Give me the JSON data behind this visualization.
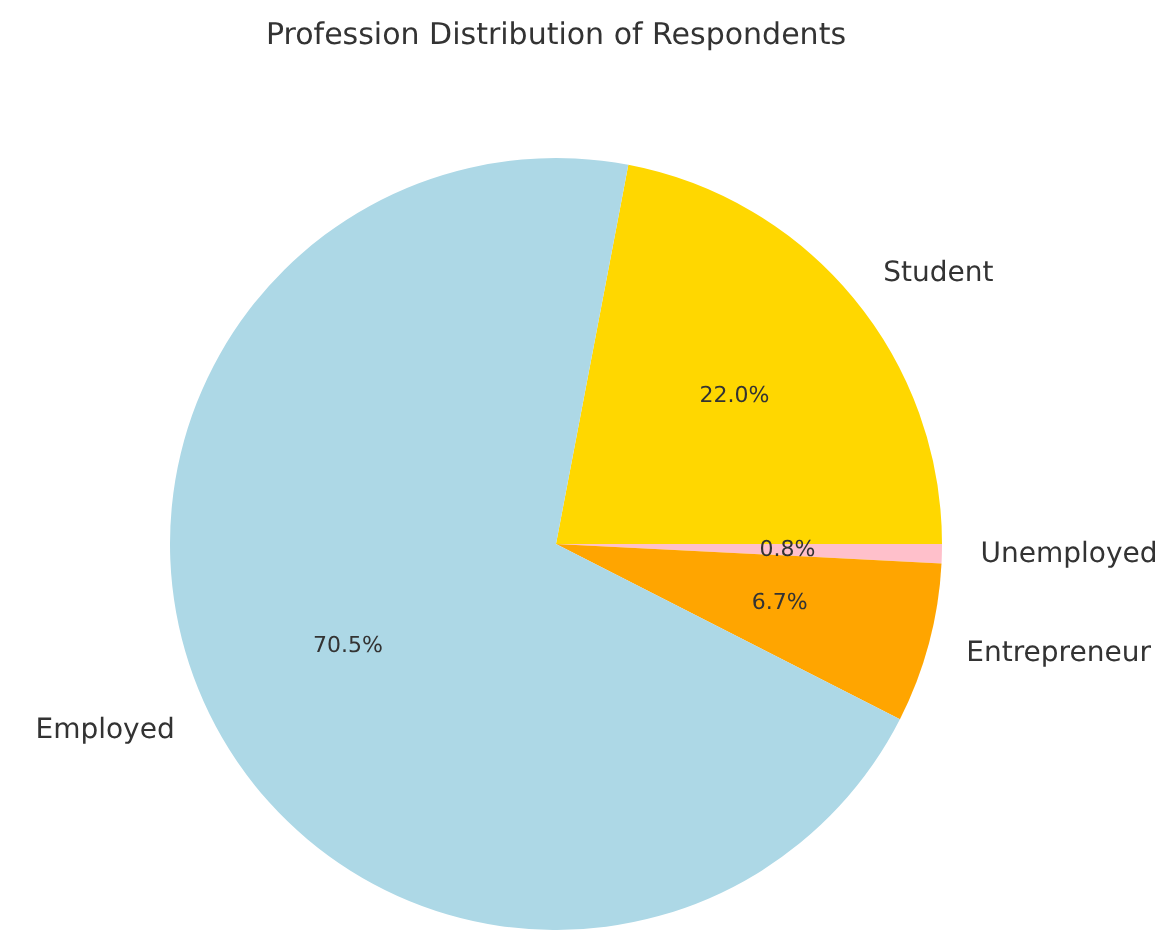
{
  "chart_data": {
    "type": "pie",
    "title": "Profession Distribution of Respondents",
    "categories": [
      "Student",
      "Unemployed",
      "Entrepreneur",
      "Employed"
    ],
    "values": [
      22.0,
      0.8,
      6.7,
      70.5
    ],
    "colors": [
      "#ffd700",
      "#ffc0cb",
      "#ffa500",
      "#add8e6"
    ],
    "value_labels": [
      "22.0%",
      "0.8%",
      "6.7%",
      "70.5%"
    ],
    "legend": false
  }
}
